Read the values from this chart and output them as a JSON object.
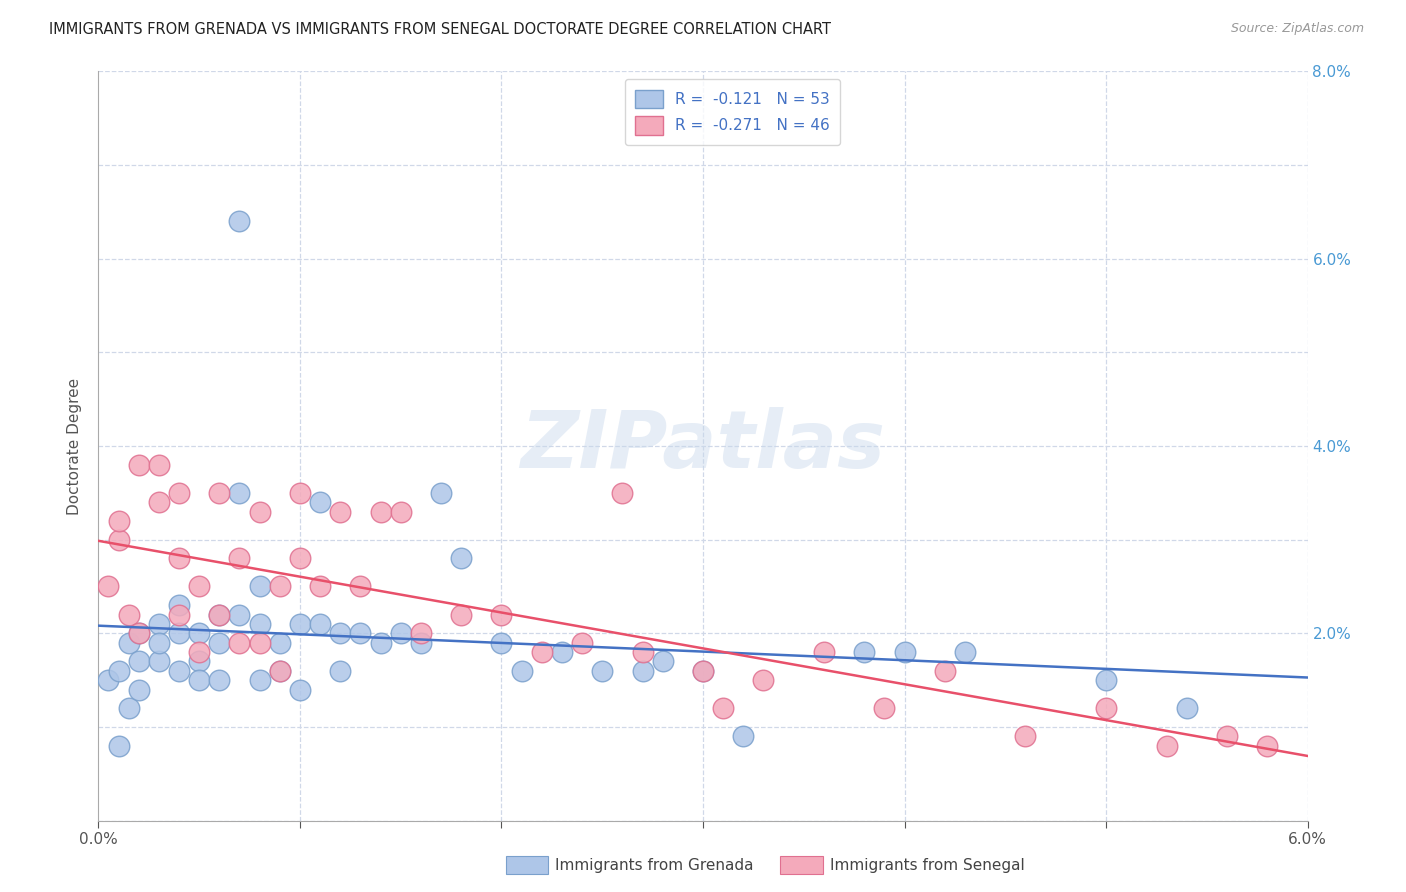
{
  "title": "IMMIGRANTS FROM GRENADA VS IMMIGRANTS FROM SENEGAL DOCTORATE DEGREE CORRELATION CHART",
  "source": "Source: ZipAtlas.com",
  "ylabel": "Doctorate Degree",
  "xlim": [
    0.0,
    0.06
  ],
  "ylim": [
    0.0,
    0.08
  ],
  "legend_label1": "Immigrants from Grenada",
  "legend_label2": "Immigrants from Senegal",
  "background_color": "#ffffff",
  "grid_color": "#d0d8e8",
  "watermark_text": "ZIPatlas",
  "grenada_line_color": "#4472c4",
  "senegal_line_color": "#e8506a",
  "grenada_scatter_face": "#aec6e8",
  "grenada_scatter_edge": "#7aa0cc",
  "senegal_scatter_face": "#f4aabb",
  "senegal_scatter_edge": "#e07090",
  "legend1_text": "R =  -0.121   N = 53",
  "legend2_text": "R =  -0.271   N = 46",
  "grenada_x": [
    0.0005,
    0.001,
    0.001,
    0.0015,
    0.0015,
    0.002,
    0.002,
    0.002,
    0.003,
    0.003,
    0.003,
    0.004,
    0.004,
    0.004,
    0.005,
    0.005,
    0.005,
    0.006,
    0.006,
    0.006,
    0.007,
    0.007,
    0.007,
    0.008,
    0.008,
    0.008,
    0.009,
    0.009,
    0.01,
    0.01,
    0.011,
    0.011,
    0.012,
    0.012,
    0.013,
    0.014,
    0.015,
    0.016,
    0.017,
    0.018,
    0.02,
    0.021,
    0.023,
    0.025,
    0.027,
    0.028,
    0.03,
    0.032,
    0.038,
    0.04,
    0.043,
    0.05,
    0.054
  ],
  "grenada_y": [
    0.015,
    0.008,
    0.016,
    0.019,
    0.012,
    0.014,
    0.017,
    0.02,
    0.017,
    0.021,
    0.019,
    0.016,
    0.02,
    0.023,
    0.017,
    0.02,
    0.015,
    0.019,
    0.022,
    0.015,
    0.064,
    0.035,
    0.022,
    0.025,
    0.021,
    0.015,
    0.019,
    0.016,
    0.021,
    0.014,
    0.034,
    0.021,
    0.02,
    0.016,
    0.02,
    0.019,
    0.02,
    0.019,
    0.035,
    0.028,
    0.019,
    0.016,
    0.018,
    0.016,
    0.016,
    0.017,
    0.016,
    0.009,
    0.018,
    0.018,
    0.018,
    0.015,
    0.012
  ],
  "senegal_x": [
    0.0005,
    0.001,
    0.001,
    0.0015,
    0.002,
    0.002,
    0.003,
    0.003,
    0.004,
    0.004,
    0.004,
    0.005,
    0.005,
    0.006,
    0.006,
    0.007,
    0.007,
    0.008,
    0.008,
    0.009,
    0.009,
    0.01,
    0.01,
    0.011,
    0.012,
    0.013,
    0.014,
    0.015,
    0.016,
    0.018,
    0.02,
    0.022,
    0.024,
    0.026,
    0.027,
    0.03,
    0.031,
    0.033,
    0.036,
    0.039,
    0.042,
    0.046,
    0.05,
    0.053,
    0.056,
    0.058
  ],
  "senegal_y": [
    0.025,
    0.03,
    0.032,
    0.022,
    0.038,
    0.02,
    0.038,
    0.034,
    0.035,
    0.028,
    0.022,
    0.025,
    0.018,
    0.035,
    0.022,
    0.028,
    0.019,
    0.033,
    0.019,
    0.025,
    0.016,
    0.035,
    0.028,
    0.025,
    0.033,
    0.025,
    0.033,
    0.033,
    0.02,
    0.022,
    0.022,
    0.018,
    0.019,
    0.035,
    0.018,
    0.016,
    0.012,
    0.015,
    0.018,
    0.012,
    0.016,
    0.009,
    0.012,
    0.008,
    0.009,
    0.008
  ]
}
